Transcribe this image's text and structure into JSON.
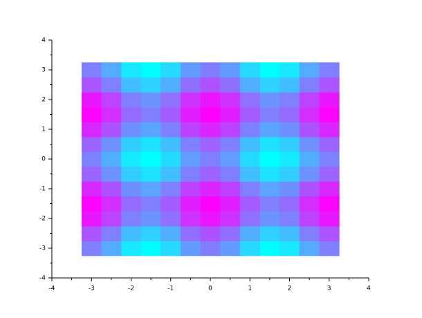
{
  "chart_data": {
    "type": "heatmap",
    "x": [
      -3,
      -2.5,
      -2,
      -1.5,
      -1,
      -0.5,
      0,
      0.5,
      1,
      1.5,
      2,
      2.5,
      3
    ],
    "y": [
      -3,
      -2.5,
      -2,
      -1.5,
      -1,
      -0.5,
      0,
      0.5,
      1,
      1.5,
      2,
      2.5,
      3
    ],
    "values": [
      [
        0,
        -0.34,
        -0.81,
        -0.97,
        -0.69,
        -0.21,
        0.02,
        -0.21,
        -0.69,
        -0.97,
        -0.81,
        -0.34,
        0
      ],
      [
        0.34,
        0,
        -0.47,
        -0.63,
        -0.35,
        0.13,
        0.36,
        0.13,
        -0.35,
        -0.63,
        -0.47,
        0,
        0.34
      ],
      [
        0.81,
        0.47,
        0,
        -0.16,
        0.12,
        0.6,
        0.83,
        0.6,
        0.12,
        -0.16,
        0,
        0.47,
        0.81
      ],
      [
        0.97,
        0.63,
        0.16,
        0,
        0.28,
        0.76,
        0.99,
        0.76,
        0.28,
        0,
        0.16,
        0.63,
        0.97
      ],
      [
        0.69,
        0.35,
        -0.12,
        -0.28,
        0,
        0.48,
        0.71,
        0.48,
        0,
        -0.28,
        -0.12,
        0.35,
        0.69
      ],
      [
        0.21,
        -0.13,
        -0.6,
        -0.76,
        -0.48,
        0,
        0.23,
        0,
        -0.48,
        -0.76,
        -0.6,
        -0.13,
        0.21
      ],
      [
        -0.02,
        -0.36,
        -0.83,
        -0.99,
        -0.71,
        -0.23,
        0,
        -0.23,
        -0.71,
        -0.99,
        -0.83,
        -0.36,
        -0.02
      ],
      [
        0.21,
        -0.13,
        -0.6,
        -0.76,
        -0.48,
        0,
        0.23,
        0,
        -0.48,
        -0.76,
        -0.6,
        -0.13,
        0.21
      ],
      [
        0.69,
        0.35,
        -0.12,
        -0.28,
        0,
        0.48,
        0.71,
        0.48,
        0,
        -0.28,
        -0.12,
        0.35,
        0.69
      ],
      [
        0.97,
        0.63,
        0.16,
        0,
        0.28,
        0.76,
        0.99,
        0.76,
        0.28,
        0,
        0.16,
        0.63,
        0.97
      ],
      [
        0.81,
        0.47,
        0,
        -0.16,
        0.12,
        0.6,
        0.83,
        0.6,
        0.12,
        -0.16,
        0,
        0.47,
        0.81
      ],
      [
        0.34,
        0,
        -0.47,
        -0.63,
        -0.35,
        0.13,
        0.36,
        0.13,
        -0.35,
        -0.63,
        -0.47,
        0,
        0.34
      ],
      [
        0,
        -0.34,
        -0.81,
        -0.97,
        -0.69,
        -0.21,
        0.02,
        -0.21,
        -0.69,
        -0.97,
        -0.81,
        -0.34,
        0
      ]
    ],
    "colormap": [
      "#00ffff",
      "#ff00ff"
    ],
    "xlim": [
      -4,
      4
    ],
    "ylim": [
      -4,
      4
    ],
    "xticks": [
      -4,
      -3,
      -2,
      -1,
      0,
      1,
      2,
      3,
      4
    ],
    "yticks": [
      -4,
      -3,
      -2,
      -1,
      0,
      1,
      2,
      3,
      4
    ]
  }
}
